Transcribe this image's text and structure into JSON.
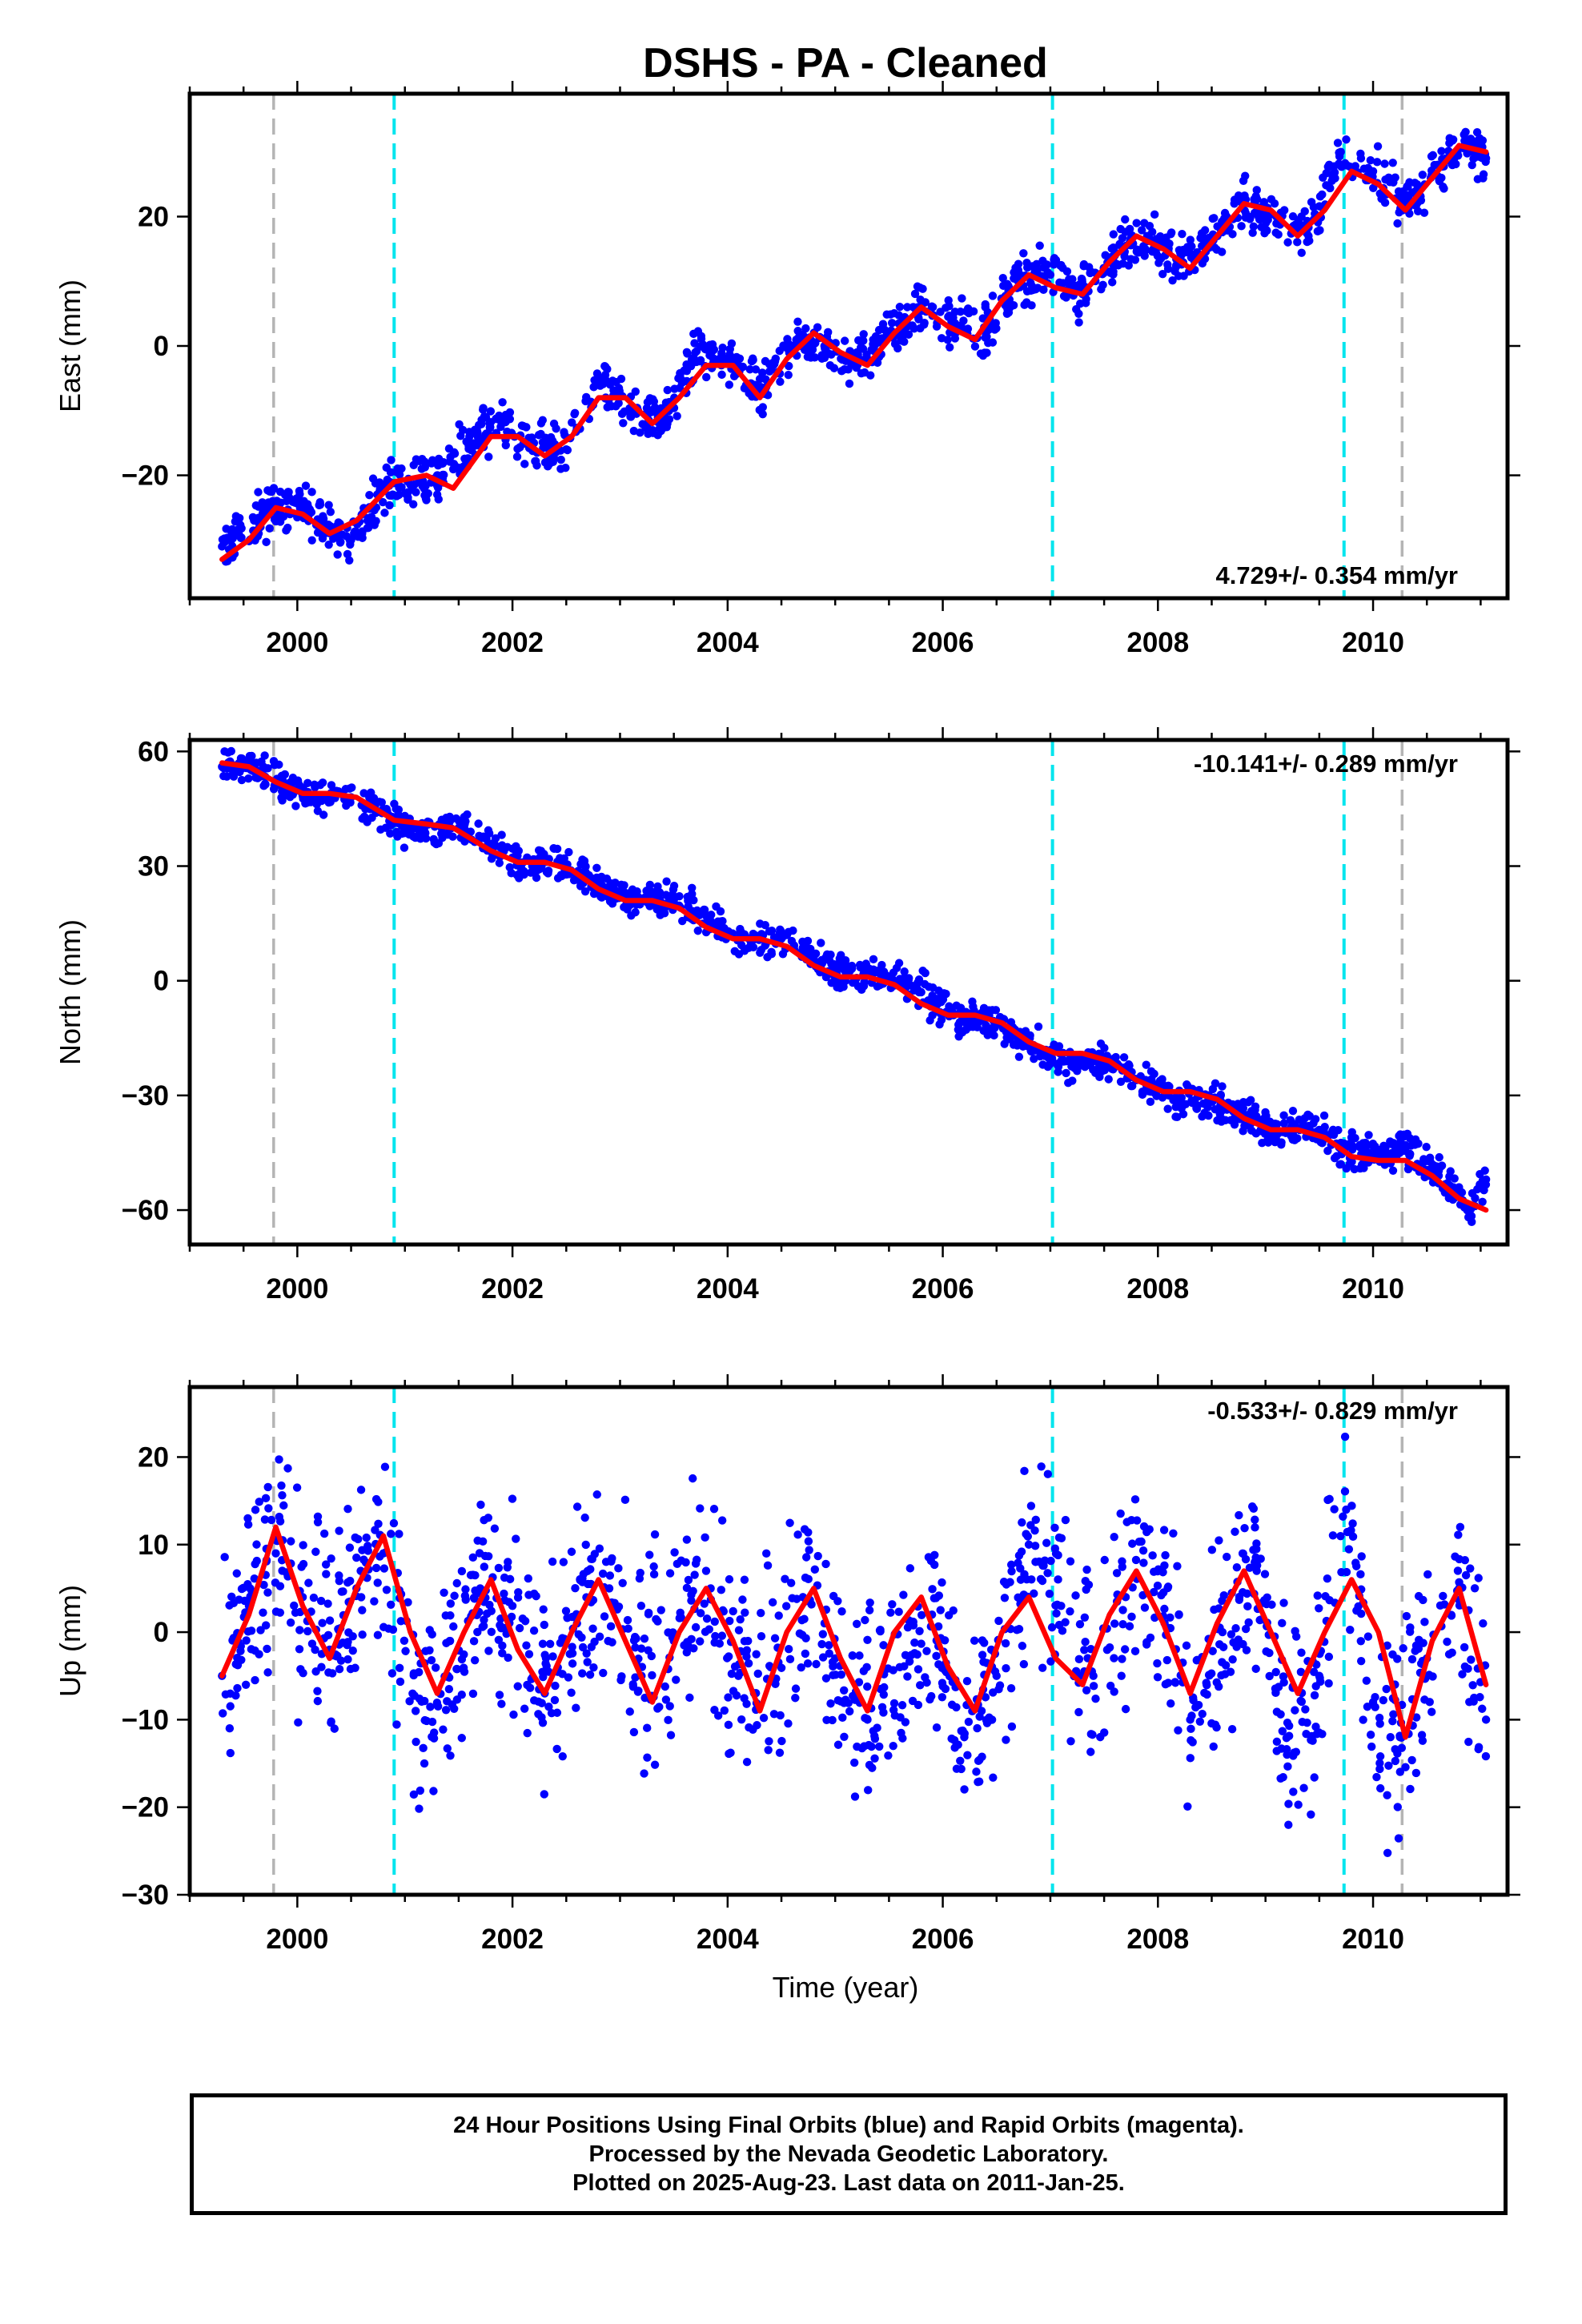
{
  "title": "DSHS  - PA - Cleaned",
  "xlabel": "Time (year)",
  "footer": {
    "line1": "24 Hour Positions Using Final Orbits (blue) and Rapid Orbits (magenta).",
    "line2": "Processed by the Nevada Geodetic Laboratory.",
    "line3": "Plotted on 2025-Aug-23. Last data on 2011-Jan-25."
  },
  "colors": {
    "points": "#0000ff",
    "fit": "#ff0000",
    "event_line_cyan": "#00e5ee",
    "event_line_gray": "#b4b4b4"
  },
  "chart_data": [
    {
      "type": "scatter",
      "ylabel": "East (mm)",
      "xlim": [
        1999.0,
        2011.25
      ],
      "ylim": [
        -39,
        39
      ],
      "yticks": [
        -20,
        0,
        20
      ],
      "xticks": [
        2000,
        2002,
        2004,
        2006,
        2008,
        2010
      ],
      "rate_label": "4.729+/- 0.354 mm/yr",
      "rate_position": "bottom-right",
      "grid": false,
      "event_lines": [
        {
          "x": 1999.78,
          "kind": "gray"
        },
        {
          "x": 2000.9,
          "kind": "cyan"
        },
        {
          "x": 2007.02,
          "kind": "cyan"
        },
        {
          "x": 2009.73,
          "kind": "cyan"
        },
        {
          "x": 2010.27,
          "kind": "gray"
        }
      ],
      "series": [
        {
          "role": "daily positions (blue)",
          "x": [
            1999.3,
            1999.6,
            1999.9,
            2000.2,
            2000.5,
            2000.8,
            2001.3,
            2001.6,
            2001.9,
            2002.2,
            2002.5,
            2002.8,
            2003.1,
            2003.4,
            2003.7,
            2004.0,
            2004.3,
            2004.6,
            2004.9,
            2005.2,
            2005.5,
            2005.8,
            2006.1,
            2006.4,
            2006.7,
            2007.0,
            2007.3,
            2007.6,
            2007.9,
            2008.2,
            2008.5,
            2008.8,
            2009.1,
            2009.4,
            2009.7,
            2010.0,
            2010.3,
            2010.6,
            2010.9,
            2011.05
          ],
          "y": [
            -31,
            -27,
            -24,
            -27,
            -30,
            -22,
            -20,
            -15,
            -12,
            -15,
            -16,
            -6,
            -10,
            -11,
            -1,
            -2,
            -7,
            0,
            0,
            -3,
            2,
            6,
            3,
            2,
            10,
            11,
            8,
            14,
            17,
            13,
            16,
            22,
            20,
            17,
            30,
            27,
            22,
            28,
            31,
            29
          ]
        },
        {
          "role": "seasonal + trend fit (red)",
          "x": [
            1999.3,
            1999.55,
            1999.8,
            2000.05,
            2000.3,
            2000.55,
            2000.9,
            2001.2,
            2001.45,
            2001.8,
            2002.05,
            2002.3,
            2002.55,
            2002.8,
            2003.05,
            2003.3,
            2003.55,
            2003.8,
            2004.05,
            2004.3,
            2004.55,
            2004.8,
            2005.05,
            2005.3,
            2005.55,
            2005.8,
            2006.05,
            2006.3,
            2006.55,
            2006.8,
            2007.05,
            2007.3,
            2007.55,
            2007.8,
            2008.05,
            2008.3,
            2008.55,
            2008.8,
            2009.05,
            2009.3,
            2009.55,
            2009.8,
            2010.05,
            2010.3,
            2010.55,
            2010.8,
            2011.05
          ],
          "y": [
            -33,
            -30,
            -25,
            -26,
            -29,
            -27,
            -21,
            -20,
            -22,
            -14,
            -14,
            -17,
            -14,
            -8,
            -8,
            -12,
            -8,
            -3,
            -3,
            -8,
            -2,
            2,
            -1,
            -3,
            2,
            6,
            3,
            1,
            7,
            11,
            9,
            8,
            13,
            17,
            15,
            12,
            17,
            22,
            21,
            17,
            21,
            27,
            25,
            21,
            26,
            31,
            30
          ]
        }
      ]
    },
    {
      "type": "scatter",
      "ylabel": "North (mm)",
      "xlim": [
        1999.0,
        2011.25
      ],
      "ylim": [
        -69,
        63
      ],
      "yticks": [
        -60,
        -30,
        0,
        30,
        60
      ],
      "xticks": [
        2000,
        2002,
        2004,
        2006,
        2008,
        2010
      ],
      "rate_label": "-10.141+/- 0.289 mm/yr",
      "rate_position": "top-right",
      "grid": false,
      "event_lines": [
        {
          "x": 1999.78,
          "kind": "gray"
        },
        {
          "x": 2000.9,
          "kind": "cyan"
        },
        {
          "x": 2007.02,
          "kind": "cyan"
        },
        {
          "x": 2009.73,
          "kind": "cyan"
        },
        {
          "x": 2010.27,
          "kind": "gray"
        }
      ],
      "series": [
        {
          "role": "daily positions (blue)",
          "x": [
            1999.3,
            1999.6,
            1999.9,
            2000.2,
            2000.5,
            2000.8,
            2001.0,
            2001.5,
            2001.8,
            2002.1,
            2002.5,
            2002.8,
            2003.1,
            2003.5,
            2003.8,
            2004.1,
            2004.5,
            2004.8,
            2005.1,
            2005.5,
            2005.8,
            2006.1,
            2006.5,
            2006.8,
            2007.1,
            2007.5,
            2007.8,
            2008.1,
            2008.5,
            2008.8,
            2009.1,
            2009.4,
            2009.7,
            2010.0,
            2010.3,
            2010.6,
            2010.9,
            2011.05
          ],
          "y": [
            56,
            56,
            51,
            48,
            48,
            45,
            39,
            40,
            35,
            31,
            30,
            25,
            21,
            21,
            17,
            11,
            11,
            6,
            2,
            1,
            -3,
            -9,
            -11,
            -16,
            -21,
            -21,
            -26,
            -30,
            -31,
            -35,
            -40,
            -38,
            -44,
            -46,
            -43,
            -50,
            -60,
            -52
          ]
        },
        {
          "role": "seasonal + trend fit (red)",
          "x": [
            1999.3,
            1999.55,
            1999.8,
            2000.05,
            2000.3,
            2000.55,
            2000.9,
            2001.2,
            2001.45,
            2001.8,
            2002.05,
            2002.3,
            2002.55,
            2002.8,
            2003.05,
            2003.3,
            2003.55,
            2003.8,
            2004.05,
            2004.3,
            2004.55,
            2004.8,
            2005.05,
            2005.3,
            2005.55,
            2005.8,
            2006.05,
            2006.3,
            2006.55,
            2006.8,
            2007.05,
            2007.3,
            2007.55,
            2007.8,
            2008.05,
            2008.3,
            2008.55,
            2008.8,
            2009.05,
            2009.3,
            2009.55,
            2009.8,
            2010.05,
            2010.3,
            2010.55,
            2010.8,
            2011.05
          ],
          "y": [
            57,
            56,
            52,
            49,
            49,
            48,
            42,
            41,
            40,
            34,
            31,
            31,
            29,
            24,
            21,
            21,
            19,
            14,
            11,
            11,
            9,
            4,
            1,
            1,
            -1,
            -6,
            -9,
            -9,
            -11,
            -16,
            -19,
            -19,
            -21,
            -26,
            -29,
            -29,
            -31,
            -36,
            -39,
            -39,
            -41,
            -46,
            -47,
            -47,
            -51,
            -57,
            -60
          ]
        }
      ]
    },
    {
      "type": "scatter",
      "ylabel": "Up (mm)",
      "xlabel": "Time (year)",
      "xlim": [
        1999.0,
        2011.25
      ],
      "ylim": [
        -30,
        28
      ],
      "yticks": [
        -30,
        -20,
        -10,
        0,
        10,
        20
      ],
      "xticks": [
        2000,
        2002,
        2004,
        2006,
        2008,
        2010
      ],
      "rate_label": "-0.533+/- 0.829 mm/yr",
      "rate_position": "top-right",
      "grid": false,
      "event_lines": [
        {
          "x": 1999.78,
          "kind": "gray"
        },
        {
          "x": 2000.9,
          "kind": "cyan"
        },
        {
          "x": 2007.02,
          "kind": "cyan"
        },
        {
          "x": 2009.73,
          "kind": "cyan"
        },
        {
          "x": 2010.27,
          "kind": "gray"
        }
      ],
      "series": [
        {
          "role": "daily positions (blue)",
          "x": [
            1999.3,
            1999.55,
            1999.8,
            2000.05,
            2000.3,
            2000.55,
            2000.8,
            2001.1,
            2001.4,
            2001.7,
            2002.0,
            2002.3,
            2002.6,
            2002.9,
            2003.2,
            2003.5,
            2003.8,
            2004.1,
            2004.4,
            2004.7,
            2005.0,
            2005.3,
            2005.6,
            2005.9,
            2006.2,
            2006.5,
            2006.8,
            2007.1,
            2007.4,
            2007.7,
            2008.0,
            2008.3,
            2008.6,
            2008.9,
            2009.2,
            2009.5,
            2009.75,
            2010.0,
            2010.25,
            2010.5,
            2010.8,
            2011.05
          ],
          "y": [
            -5,
            3,
            9,
            4,
            -2,
            5,
            9,
            -9,
            -5,
            5,
            3,
            -7,
            1,
            5,
            -5,
            -1,
            7,
            -5,
            -4,
            4,
            -3,
            -10,
            -4,
            2,
            -12,
            -5,
            10,
            3,
            -5,
            4,
            7,
            -10,
            0,
            8,
            -14,
            -5,
            14,
            -8,
            -12,
            -3,
            5,
            -10
          ]
        },
        {
          "role": "seasonal + trend fit (red)",
          "x": [
            1999.3,
            1999.55,
            1999.8,
            2000.05,
            2000.3,
            2000.55,
            2000.8,
            2001.05,
            2001.3,
            2001.55,
            2001.8,
            2002.05,
            2002.3,
            2002.55,
            2002.8,
            2003.05,
            2003.3,
            2003.55,
            2003.8,
            2004.05,
            2004.3,
            2004.55,
            2004.8,
            2005.05,
            2005.3,
            2005.55,
            2005.8,
            2006.05,
            2006.3,
            2006.55,
            2006.8,
            2007.05,
            2007.3,
            2007.55,
            2007.8,
            2008.05,
            2008.3,
            2008.55,
            2008.8,
            2009.05,
            2009.3,
            2009.55,
            2009.8,
            2010.05,
            2010.3,
            2010.55,
            2010.8,
            2011.05
          ],
          "y": [
            -5,
            2,
            12,
            3,
            -3,
            5,
            11,
            0,
            -7,
            0,
            6,
            -2,
            -7,
            0,
            6,
            -1,
            -8,
            0,
            5,
            -1,
            -9,
            0,
            5,
            -3,
            -9,
            0,
            4,
            -4,
            -9,
            0,
            4,
            -3,
            -6,
            2,
            7,
            1,
            -7,
            1,
            7,
            0,
            -7,
            0,
            6,
            0,
            -12,
            -1,
            5,
            -6
          ]
        }
      ]
    }
  ]
}
